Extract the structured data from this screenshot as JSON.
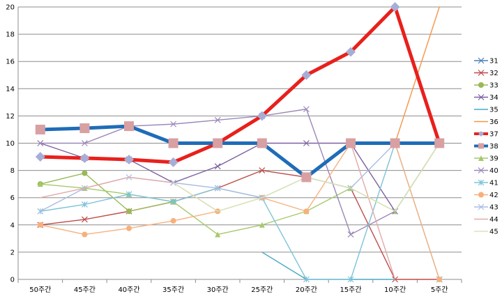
{
  "chart_data": {
    "type": "line",
    "categories": [
      "50주간",
      "45주간",
      "40주간",
      "35주간",
      "30주간",
      "25주간",
      "20주간",
      "15주간",
      "10주간",
      "5주간"
    ],
    "ylim": [
      0,
      20
    ],
    "yticks": [
      0,
      2,
      4,
      6,
      8,
      10,
      12,
      14,
      16,
      18,
      20
    ],
    "grid": true,
    "legend_position": "right",
    "series": [
      {
        "name": "31",
        "color": "#4a7ebb",
        "marker": "x",
        "emphasis": false,
        "values": [
          null,
          null,
          null,
          null,
          null,
          null,
          7.5,
          10,
          10,
          10
        ]
      },
      {
        "name": "32",
        "color": "#be4b48",
        "marker": "x",
        "emphasis": false,
        "values": [
          4,
          4.4,
          5,
          5.7,
          6.7,
          8,
          7.5,
          6.7,
          0,
          0
        ]
      },
      {
        "name": "33",
        "color": "#98b954",
        "marker": "circle",
        "emphasis": false,
        "values": [
          7,
          7.8,
          5,
          5.7,
          null,
          null,
          null,
          null,
          null,
          null
        ]
      },
      {
        "name": "34",
        "color": "#7d60a0",
        "marker": "x",
        "emphasis": false,
        "values": [
          10,
          8.9,
          8.8,
          7.1,
          8.3,
          10,
          10,
          10,
          5,
          null
        ]
      },
      {
        "name": "35",
        "color": "#46aac5",
        "marker": "none",
        "emphasis": false,
        "values": [
          null,
          null,
          null,
          5.7,
          null,
          2,
          0,
          0,
          0,
          null
        ]
      },
      {
        "name": "36",
        "color": "#f69546",
        "marker": "none",
        "emphasis": false,
        "values": [
          null,
          null,
          null,
          null,
          null,
          null,
          null,
          null,
          10,
          20
        ]
      },
      {
        "name": "37",
        "color": "#e8201c",
        "marker": "diamond",
        "emphasis": true,
        "values": [
          9,
          8.9,
          8.8,
          8.6,
          10,
          12,
          15,
          16.7,
          20,
          10
        ]
      },
      {
        "name": "38",
        "color": "#1f6cb8",
        "marker": "square",
        "emphasis": true,
        "values": [
          11,
          11.1,
          11.25,
          10,
          10,
          10,
          7.5,
          10,
          10,
          10
        ]
      },
      {
        "name": "39",
        "color": "#a6c96a",
        "marker": "triangle",
        "emphasis": false,
        "values": [
          7,
          6.7,
          6.25,
          5.7,
          3.3,
          4,
          5,
          6.7,
          5,
          10
        ]
      },
      {
        "name": "40",
        "color": "#9b87b8",
        "marker": "x",
        "emphasis": false,
        "values": [
          10,
          10,
          11.25,
          11.4,
          11.7,
          12,
          12.5,
          3.3,
          5,
          10
        ]
      },
      {
        "name": "41",
        "color": "#7cc3d8",
        "marker": "star",
        "emphasis": false,
        "values": [
          5,
          5.5,
          6.25,
          5.7,
          6.7,
          6,
          0,
          0,
          10,
          0
        ]
      },
      {
        "name": "42",
        "color": "#f7b07c",
        "marker": "circle",
        "emphasis": false,
        "values": [
          4,
          3.3,
          3.75,
          4.3,
          5,
          6,
          5,
          10,
          10,
          0
        ]
      },
      {
        "name": "43",
        "color": "#a7bde0",
        "marker": "x",
        "emphasis": false,
        "values": [
          5,
          6.7,
          7.5,
          7.1,
          6.7,
          6,
          7.5,
          6.7,
          10,
          10
        ]
      },
      {
        "name": "44",
        "color": "#e4a9a8",
        "marker": "none",
        "emphasis": false,
        "values": [
          6,
          6.7,
          7.5,
          7.1,
          5,
          null,
          null,
          10,
          0,
          null
        ]
      },
      {
        "name": "45",
        "color": "#d6e6b5",
        "marker": "none",
        "emphasis": false,
        "values": [
          null,
          null,
          null,
          7.1,
          5,
          6,
          7.5,
          6.7,
          5,
          10
        ]
      }
    ]
  }
}
